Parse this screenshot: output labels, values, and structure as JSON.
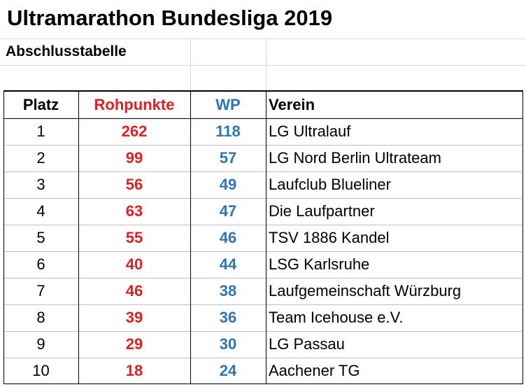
{
  "title": "Ultramarathon Bundesliga 2019",
  "subtitle": "Abschlusstabelle",
  "table": {
    "columns": [
      "Platz",
      "Rohpunkte",
      "WP",
      "Verein"
    ],
    "rows": [
      [
        1,
        262,
        118,
        "LG Ultralauf"
      ],
      [
        2,
        99,
        57,
        "LG Nord Berlin Ultrateam"
      ],
      [
        3,
        56,
        49,
        "Laufclub Blueliner"
      ],
      [
        4,
        63,
        47,
        "Die Laufpartner"
      ],
      [
        5,
        55,
        46,
        "TSV 1886 Kandel"
      ],
      [
        6,
        40,
        44,
        "LSG Karlsruhe"
      ],
      [
        7,
        46,
        38,
        "Laufgemeinschaft Würzburg"
      ],
      [
        8,
        39,
        36,
        "Team Icehouse e.V."
      ],
      [
        9,
        29,
        30,
        "LG Passau"
      ],
      [
        10,
        18,
        24,
        "Aachener TG"
      ]
    ]
  }
}
